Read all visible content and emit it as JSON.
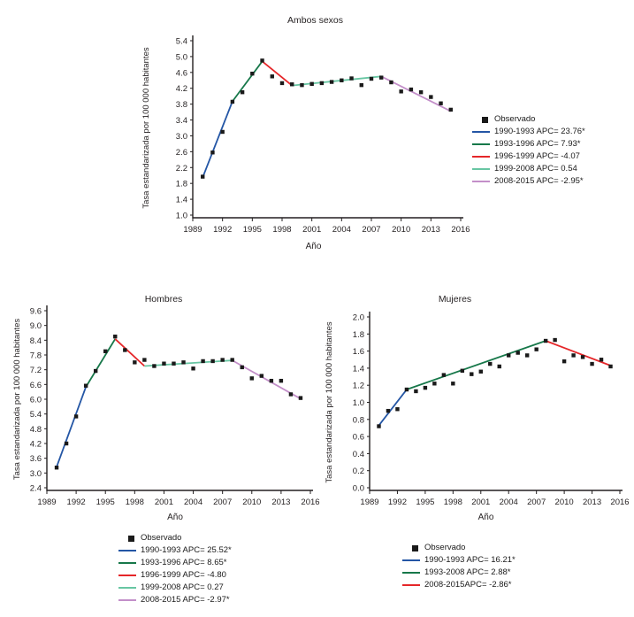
{
  "background_color": "#ffffff",
  "text_color": "#231f20",
  "observed_marker_color": "#1a1a1a",
  "chart_data": [
    {
      "type": "line",
      "title": "Ambos sexos",
      "xlabel": "Año",
      "ylabel": "Tasa estandarizada por 100 000 habitantes",
      "xlim": [
        1989,
        2016
      ],
      "ylim": [
        1.0,
        5.4
      ],
      "xticks": [
        "1989",
        "1992",
        "1995",
        "1998",
        "2001",
        "2004",
        "2007",
        "2010",
        "2013",
        "2016"
      ],
      "yticks": [
        "1.0",
        "1.4",
        "1.8",
        "2.2",
        "2.6",
        "3.0",
        "3.4",
        "3.8",
        "4.2",
        "4.6",
        "5.0",
        "5.4"
      ],
      "legend_position": "right",
      "observed": {
        "label": "Observado",
        "x": [
          1990,
          1991,
          1992,
          1993,
          1994,
          1995,
          1996,
          1997,
          1998,
          1999,
          2000,
          2001,
          2002,
          2003,
          2004,
          2005,
          2006,
          2007,
          2008,
          2009,
          2010,
          2011,
          2012,
          2013,
          2014,
          2015
        ],
        "y": [
          1.97,
          2.58,
          3.1,
          3.86,
          4.1,
          4.57,
          4.9,
          4.5,
          4.33,
          4.3,
          4.28,
          4.31,
          4.33,
          4.36,
          4.4,
          4.45,
          4.28,
          4.44,
          4.47,
          4.35,
          4.12,
          4.17,
          4.1,
          3.98,
          3.82,
          3.66
        ]
      },
      "segments": [
        {
          "label": "1990-1993 APC= 23.76*",
          "color": "#2456a5",
          "x": [
            1990,
            1993
          ],
          "y": [
            1.95,
            3.87
          ]
        },
        {
          "label": "1993-1996 APC= 7.93*",
          "color": "#17784a",
          "x": [
            1993,
            1996
          ],
          "y": [
            3.87,
            4.88
          ]
        },
        {
          "label": "1996-1999 APC= -4.07",
          "color": "#e52629",
          "x": [
            1996,
            1999
          ],
          "y": [
            4.88,
            4.27
          ]
        },
        {
          "label": "1999-2008 APC= 0.54",
          "color": "#68c6a3",
          "x": [
            1999,
            2008
          ],
          "y": [
            4.27,
            4.5
          ]
        },
        {
          "label": "2008-2015 APC= -2.95*",
          "color": "#c38fc9",
          "x": [
            2008,
            2015
          ],
          "y": [
            4.5,
            3.62
          ]
        }
      ]
    },
    {
      "type": "line",
      "title": "Hombres",
      "xlabel": "Año",
      "ylabel": "Tasa estandarizada por 100 000 habitantes",
      "xlim": [
        1989,
        2016
      ],
      "ylim": [
        2.4,
        9.6
      ],
      "xticks": [
        "1989",
        "1992",
        "1995",
        "1998",
        "2001",
        "2004",
        "2007",
        "2010",
        "2013",
        "2016"
      ],
      "yticks": [
        "2.4",
        "3.0",
        "3.6",
        "4.2",
        "4.8",
        "5.4",
        "6.0",
        "6.6",
        "7.2",
        "7.8",
        "8.4",
        "9.0",
        "9.6"
      ],
      "legend_position": "below",
      "observed": {
        "label": "Observado",
        "x": [
          1990,
          1991,
          1992,
          1993,
          1994,
          1995,
          1996,
          1997,
          1998,
          1999,
          2000,
          2001,
          2002,
          2003,
          2004,
          2005,
          2006,
          2007,
          2008,
          2009,
          2010,
          2011,
          2012,
          2013,
          2014,
          2015
        ],
        "y": [
          3.22,
          4.2,
          5.3,
          6.55,
          7.15,
          7.95,
          8.55,
          8.0,
          7.5,
          7.6,
          7.35,
          7.45,
          7.45,
          7.5,
          7.25,
          7.55,
          7.55,
          7.6,
          7.6,
          7.3,
          6.85,
          6.95,
          6.75,
          6.75,
          6.2,
          6.05
        ]
      },
      "segments": [
        {
          "label": "1990-1993 APC= 25.52*",
          "color": "#2456a5",
          "x": [
            1990,
            1993
          ],
          "y": [
            3.25,
            6.5
          ]
        },
        {
          "label": "1993-1996 APC= 8.65*",
          "color": "#17784a",
          "x": [
            1993,
            1996
          ],
          "y": [
            6.5,
            8.45
          ]
        },
        {
          "label": "1996-1999 APC= -4.80",
          "color": "#e52629",
          "x": [
            1996,
            1999
          ],
          "y": [
            8.45,
            7.35
          ]
        },
        {
          "label": "1999-2008 APC= 0.27",
          "color": "#68c6a3",
          "x": [
            1999,
            2008
          ],
          "y": [
            7.35,
            7.58
          ]
        },
        {
          "label": "2008-2015 APC= -2.97*",
          "color": "#c38fc9",
          "x": [
            2008,
            2015
          ],
          "y": [
            7.58,
            6.02
          ]
        }
      ]
    },
    {
      "type": "line",
      "title": "Mujeres",
      "xlabel": "Año",
      "ylabel": "Tasa estandarizada por 100 000 habitantes",
      "xlim": [
        1989,
        2016
      ],
      "ylim": [
        0.0,
        2.0
      ],
      "xticks": [
        "1989",
        "1992",
        "1995",
        "1998",
        "2001",
        "2004",
        "2007",
        "2010",
        "2013",
        "2016"
      ],
      "yticks": [
        "0.0",
        "0.2",
        "0.4",
        "0.6",
        "0.8",
        "1.0",
        "1.2",
        "1.4",
        "1.6",
        "1.8",
        "2.0"
      ],
      "legend_position": "below",
      "observed": {
        "label": "Observado",
        "x": [
          1990,
          1991,
          1992,
          1993,
          1994,
          1995,
          1996,
          1997,
          1998,
          1999,
          2000,
          2001,
          2002,
          2003,
          2004,
          2005,
          2006,
          2007,
          2008,
          2009,
          2010,
          2011,
          2012,
          2013,
          2014,
          2015
        ],
        "y": [
          0.72,
          0.9,
          0.92,
          1.15,
          1.13,
          1.17,
          1.22,
          1.32,
          1.22,
          1.37,
          1.33,
          1.36,
          1.45,
          1.42,
          1.55,
          1.58,
          1.55,
          1.62,
          1.72,
          1.73,
          1.48,
          1.55,
          1.53,
          1.45,
          1.5,
          1.42
        ]
      },
      "segments": [
        {
          "label": "1990-1993 APC= 16.21*",
          "color": "#2456a5",
          "x": [
            1990,
            1993
          ],
          "y": [
            0.73,
            1.15
          ]
        },
        {
          "label": "1993-2008 APC= 2.88*",
          "color": "#17784a",
          "x": [
            1993,
            2008
          ],
          "y": [
            1.15,
            1.72
          ]
        },
        {
          "label": "2008-2015APC= -2.86*",
          "color": "#e52629",
          "x": [
            2008,
            2015
          ],
          "y": [
            1.72,
            1.43
          ]
        }
      ]
    }
  ]
}
